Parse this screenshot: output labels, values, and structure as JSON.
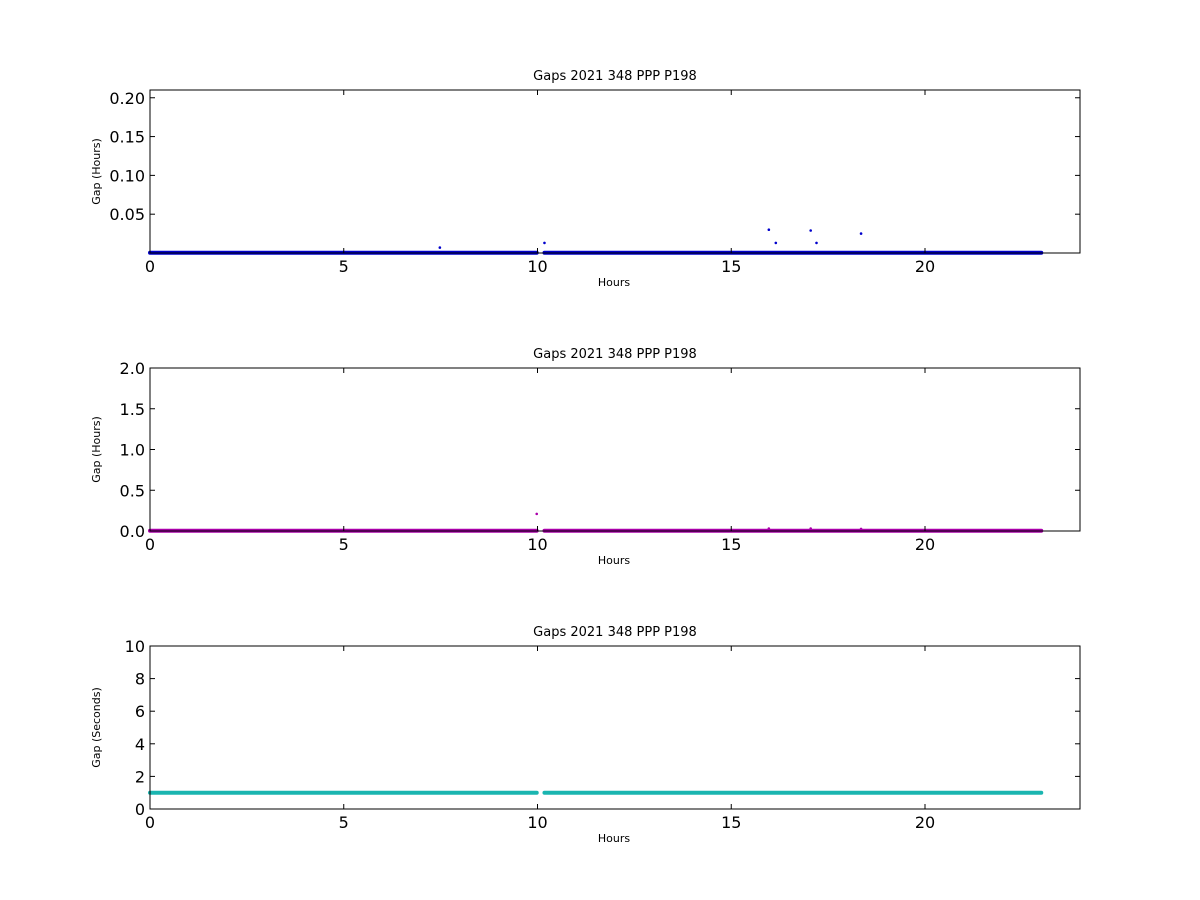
{
  "chart_data": [
    {
      "type": "scatter",
      "title": "Gaps 2021 348 PPP  P198",
      "xlabel": "Hours",
      "ylabel": "Gap (Hours)",
      "xlim": [
        0,
        24
      ],
      "ylim": [
        0,
        0.21
      ],
      "xticks": [
        0,
        5,
        10,
        15,
        20
      ],
      "xtick_labels": [
        "0",
        "5",
        "10",
        "15",
        "20"
      ],
      "yticks": [
        0.05,
        0.1,
        0.15,
        0.2
      ],
      "ytick_labels": [
        "0.05",
        "0.10",
        "0.15",
        "0.20"
      ],
      "grid": false,
      "color": "#0000cc",
      "baseline": {
        "y": 0.0003,
        "segments": [
          [
            0,
            9.98
          ],
          [
            10.18,
            23.0
          ]
        ]
      },
      "points": [
        {
          "x": 7.48,
          "y": 0.007
        },
        {
          "x": 10.18,
          "y": 0.013
        },
        {
          "x": 15.97,
          "y": 0.03
        },
        {
          "x": 16.15,
          "y": 0.013
        },
        {
          "x": 17.05,
          "y": 0.029
        },
        {
          "x": 17.2,
          "y": 0.013
        },
        {
          "x": 18.35,
          "y": 0.025
        }
      ]
    },
    {
      "type": "scatter",
      "title": "Gaps 2021 348 PPP  P198",
      "xlabel": "Hours",
      "ylabel": "Gap (Hours)",
      "xlim": [
        0,
        24
      ],
      "ylim": [
        0,
        2.0
      ],
      "xticks": [
        0,
        5,
        10,
        15,
        20
      ],
      "xtick_labels": [
        "0",
        "5",
        "10",
        "15",
        "20"
      ],
      "yticks": [
        0.0,
        0.5,
        1.0,
        1.5,
        2.0
      ],
      "ytick_labels": [
        "0.0",
        "0.5",
        "1.0",
        "1.5",
        "2.0"
      ],
      "grid": false,
      "color": "#aa00aa",
      "baseline": {
        "y": 0.003,
        "segments": [
          [
            0,
            9.98
          ],
          [
            10.18,
            23.0
          ]
        ]
      },
      "points": [
        {
          "x": 9.98,
          "y": 0.21
        },
        {
          "x": 15.97,
          "y": 0.03
        },
        {
          "x": 17.05,
          "y": 0.03
        },
        {
          "x": 18.35,
          "y": 0.025
        }
      ]
    },
    {
      "type": "scatter",
      "title": "Gaps 2021 348 PPP  P198",
      "xlabel": "Hours",
      "ylabel": "Gap (Seconds)",
      "xlim": [
        0,
        24
      ],
      "ylim": [
        0,
        10
      ],
      "xticks": [
        0,
        5,
        10,
        15,
        20
      ],
      "xtick_labels": [
        "0",
        "5",
        "10",
        "15",
        "20"
      ],
      "yticks": [
        0,
        2,
        4,
        6,
        8,
        10
      ],
      "ytick_labels": [
        "0",
        "2",
        "4",
        "6",
        "8",
        "10"
      ],
      "grid": false,
      "color": "#1ab5b0",
      "baseline": {
        "y": 1.0,
        "segments": [
          [
            0,
            9.98
          ],
          [
            10.18,
            23.0
          ]
        ]
      },
      "points": []
    }
  ]
}
